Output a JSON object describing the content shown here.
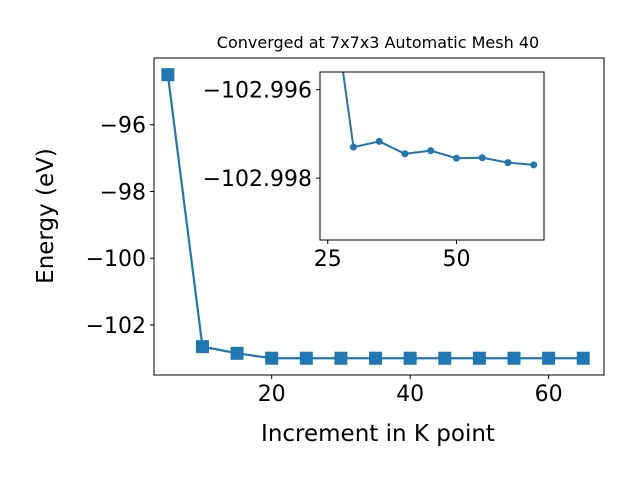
{
  "chart_data": [
    {
      "type": "line",
      "title": "Converged at 7x7x3 Automatic Mesh 40",
      "xlabel": "Increment in K point",
      "ylabel": "Energy (eV)",
      "xlim": [
        3.0,
        68.0
      ],
      "ylim": [
        -103.5,
        -94.0
      ],
      "xticks": [
        20,
        40,
        60
      ],
      "yticks": [
        -96,
        -98,
        -100,
        -102
      ],
      "xtick_labels": [
        "20",
        "40",
        "60"
      ],
      "ytick_labels": [
        "−96",
        "−98",
        "−100",
        "−102"
      ],
      "grid": false,
      "marker": "square",
      "color": "#1f77b4",
      "x": [
        5,
        10,
        15,
        20,
        25,
        30,
        35,
        40,
        45,
        50,
        55,
        60,
        65
      ],
      "y": [
        -94.5,
        -102.65,
        -102.85,
        -102.997,
        -102.9972,
        -102.9973,
        -102.99717,
        -102.99745,
        -102.99738,
        -102.99755,
        -102.99754,
        -102.99765,
        -102.9977
      ]
    },
    {
      "type": "line",
      "title": "",
      "inset": true,
      "xlim": [
        23.5,
        67.0
      ],
      "ylim": [
        -102.9994,
        -102.9956
      ],
      "ytick_labels_note": "",
      "xticks": [
        25,
        50
      ],
      "yticks": [
        -102.998,
        -102.996
      ],
      "xtick_labels": [
        "25",
        "50"
      ],
      "ytick_labels": [
        "−102.998",
        "−102.996"
      ],
      "grid": false,
      "marker": "circle",
      "color": "#1f77b4",
      "x": [
        30,
        35,
        40,
        45,
        50,
        55,
        60,
        65
      ],
      "y": [
        -102.9973,
        -102.99717,
        -102.99745,
        -102.99738,
        -102.99755,
        -102.99754,
        -102.99765,
        -102.9977
      ]
    }
  ]
}
